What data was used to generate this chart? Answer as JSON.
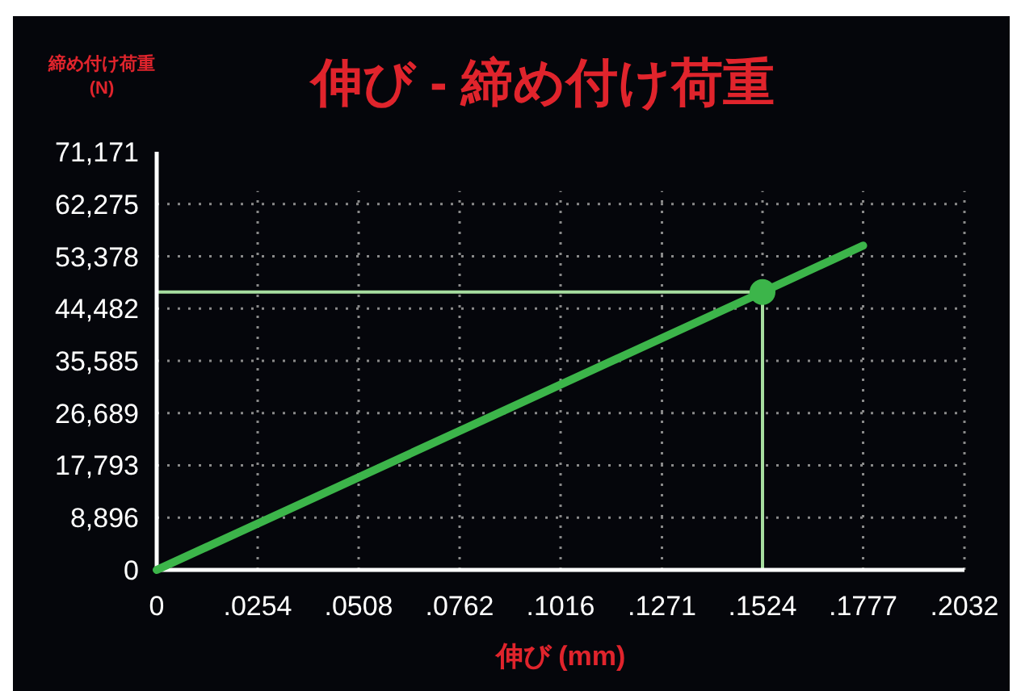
{
  "chart_data": {
    "type": "line",
    "title": "伸び - 締め付け荷重",
    "xlabel": "伸び (mm)",
    "ylabel": "締め付け荷重\n(N)",
    "xlim": [
      0,
      0.2032
    ],
    "xticks": [
      {
        "value": 0,
        "label": "0"
      },
      {
        "value": 0.0254,
        "label": ".0254"
      },
      {
        "value": 0.0508,
        "label": ".0508"
      },
      {
        "value": 0.0762,
        "label": ".0762"
      },
      {
        "value": 0.1016,
        "label": ".1016"
      },
      {
        "value": 0.1271,
        "label": ".1271"
      },
      {
        "value": 0.1524,
        "label": ".1524"
      },
      {
        "value": 0.1777,
        "label": ".1777"
      },
      {
        "value": 0.2032,
        "label": ".2032"
      }
    ],
    "ylim": [
      0,
      71171
    ],
    "yticks": [
      {
        "value": 0,
        "label": "0"
      },
      {
        "value": 8896,
        "label": "8,896"
      },
      {
        "value": 17793,
        "label": "17,793"
      },
      {
        "value": 26689,
        "label": "26,689"
      },
      {
        "value": 35585,
        "label": "35,585"
      },
      {
        "value": 44482,
        "label": "44,482"
      },
      {
        "value": 53378,
        "label": "53,378"
      },
      {
        "value": 62275,
        "label": "62,275"
      },
      {
        "value": 71171,
        "label": "71,171"
      }
    ],
    "grid": true,
    "series": [
      {
        "color": "#3cb54a",
        "x": [
          0,
          0.1524,
          0.1777
        ],
        "values": [
          0,
          47300,
          55200
        ],
        "marker": "none",
        "line_style": "solid"
      },
      {
        "type": "scatter",
        "color": "#3cb54a",
        "x": [
          0.1524
        ],
        "values": [
          47300
        ],
        "marker": "circle"
      }
    ],
    "ref_lines": [
      {
        "axis": "x",
        "value": 0.1524,
        "color": "#a6dd9f"
      },
      {
        "axis": "y",
        "value": 47300,
        "color": "#a6dd9f"
      }
    ]
  }
}
